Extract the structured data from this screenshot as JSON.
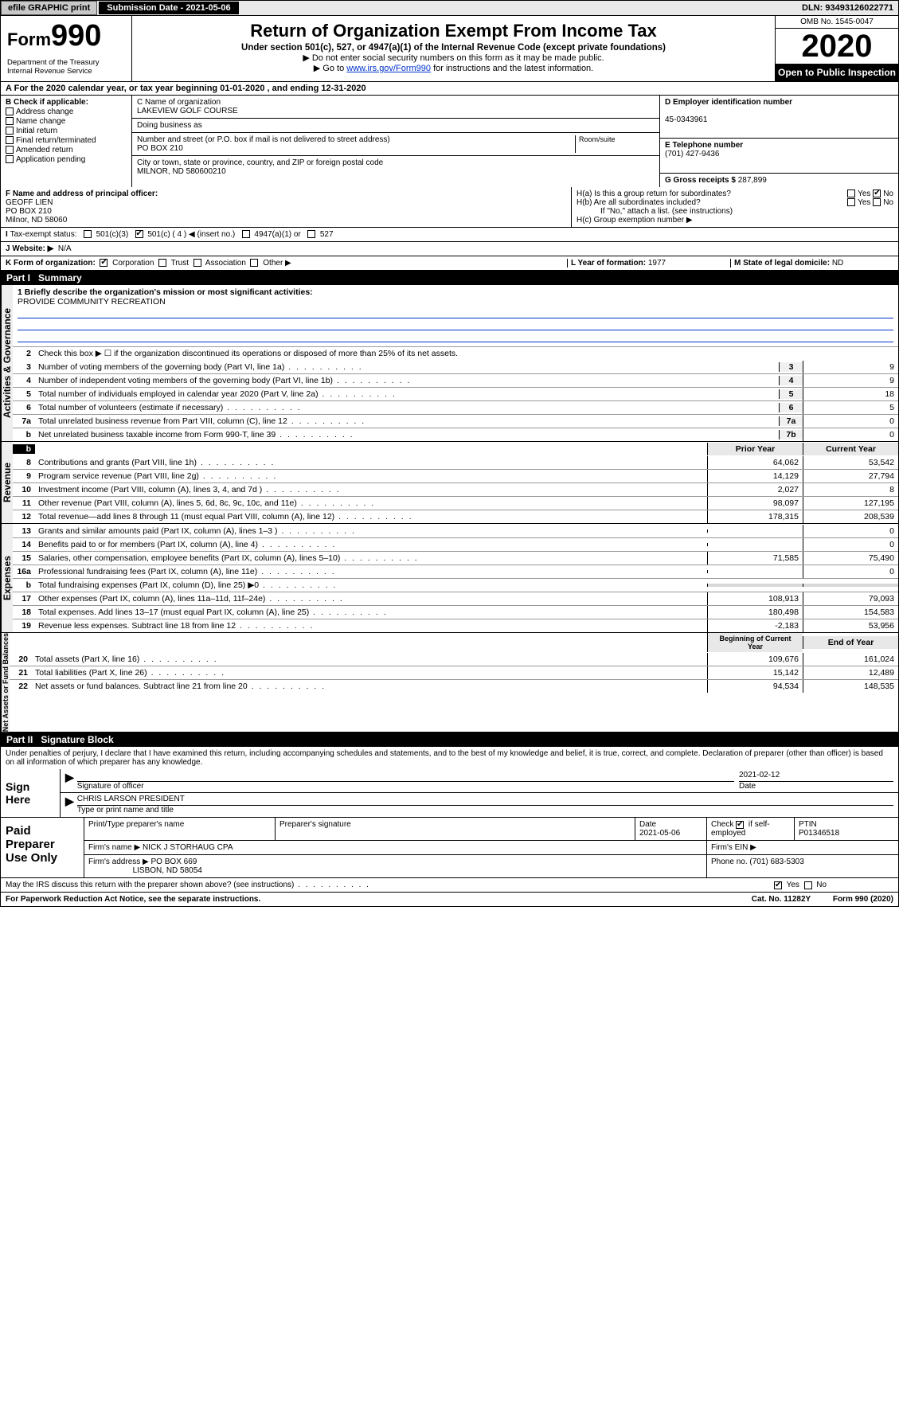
{
  "topbar": {
    "efile": "efile GRAPHIC print",
    "submission": "Submission Date - 2021-05-06",
    "dln": "DLN: 93493126022771"
  },
  "header": {
    "form_label": "Form",
    "form_num": "990",
    "dept": "Department of the Treasury\nInternal Revenue Service",
    "title": "Return of Organization Exempt From Income Tax",
    "sub1": "Under section 501(c), 527, or 4947(a)(1) of the Internal Revenue Code (except private foundations)",
    "sub2": "▶ Do not enter social security numbers on this form as it may be made public.",
    "sub3a": "▶ Go to ",
    "sub3link": "www.irs.gov/Form990",
    "sub3b": " for instructions and the latest information.",
    "omb": "OMB No. 1545-0047",
    "year": "2020",
    "open": "Open to Public Inspection"
  },
  "period": "For the 2020 calendar year, or tax year beginning 01-01-2020     , and ending 12-31-2020",
  "boxB": {
    "label": "B Check if applicable:",
    "items": [
      "Address change",
      "Name change",
      "Initial return",
      "Final return/terminated",
      "Amended return",
      "Application pending"
    ]
  },
  "boxC": {
    "name_lbl": "C Name of organization",
    "name": "LAKEVIEW GOLF COURSE",
    "dba_lbl": "Doing business as",
    "addr_lbl": "Number and street (or P.O. box if mail is not delivered to street address)",
    "room_lbl": "Room/suite",
    "addr": "PO BOX 210",
    "city_lbl": "City or town, state or province, country, and ZIP or foreign postal code",
    "city": "MILNOR, ND  580600210"
  },
  "boxD": {
    "lbl": "D Employer identification number",
    "val": "45-0343961"
  },
  "boxE": {
    "lbl": "E Telephone number",
    "val": "(701) 427-9436"
  },
  "boxG": {
    "lbl": "G Gross receipts $",
    "val": "287,899"
  },
  "boxF": {
    "lbl": "F  Name and address of principal officer:",
    "name": "GEOFF LIEN",
    "addr1": "PO BOX 210",
    "addr2": "Milnor, ND  58060"
  },
  "boxH": {
    "a": "H(a)  Is this a group return for subordinates?",
    "b": "H(b)  Are all subordinates included?",
    "bnote": "If \"No,\" attach a list. (see instructions)",
    "c": "H(c)  Group exemption number ▶",
    "yes": "Yes",
    "no": "No"
  },
  "boxI": {
    "lbl": "Tax-exempt status:",
    "opts": [
      "501(c)(3)",
      "501(c) ( 4 ) ◀ (insert no.)",
      "4947(a)(1) or",
      "527"
    ]
  },
  "boxJ": {
    "lbl": "Website: ▶",
    "val": "N/A"
  },
  "boxK": {
    "lbl": "K Form of organization:",
    "opts": [
      "Corporation",
      "Trust",
      "Association",
      "Other ▶"
    ]
  },
  "boxL": {
    "lbl": "L Year of formation:",
    "val": "1977"
  },
  "boxM": {
    "lbl": "M State of legal domicile:",
    "val": "ND"
  },
  "part1": {
    "title": "Part I",
    "name": "Summary"
  },
  "mission": {
    "q": "1  Briefly describe the organization's mission or most significant activities:",
    "a": "PROVIDE COMMUNITY RECREATION"
  },
  "governance": {
    "vert": "Activities & Governance",
    "l2": "Check this box ▶ ☐  if the organization discontinued its operations or disposed of more than 25% of its net assets.",
    "rows": [
      {
        "n": "3",
        "d": "Number of voting members of the governing body (Part VI, line 1a)",
        "c": "3",
        "v": "9"
      },
      {
        "n": "4",
        "d": "Number of independent voting members of the governing body (Part VI, line 1b)",
        "c": "4",
        "v": "9"
      },
      {
        "n": "5",
        "d": "Total number of individuals employed in calendar year 2020 (Part V, line 2a)",
        "c": "5",
        "v": "18"
      },
      {
        "n": "6",
        "d": "Total number of volunteers (estimate if necessary)",
        "c": "6",
        "v": "5"
      },
      {
        "n": "7a",
        "d": "Total unrelated business revenue from Part VIII, column (C), line 12",
        "c": "7a",
        "v": "0"
      },
      {
        "n": "b",
        "d": "Net unrelated business taxable income from Form 990-T, line 39",
        "c": "7b",
        "v": "0"
      }
    ]
  },
  "revenue": {
    "vert": "Revenue",
    "head": {
      "b": "b",
      "py": "Prior Year",
      "cy": "Current Year"
    },
    "rows": [
      {
        "n": "8",
        "d": "Contributions and grants (Part VIII, line 1h)",
        "py": "64,062",
        "cy": "53,542"
      },
      {
        "n": "9",
        "d": "Program service revenue (Part VIII, line 2g)",
        "py": "14,129",
        "cy": "27,794"
      },
      {
        "n": "10",
        "d": "Investment income (Part VIII, column (A), lines 3, 4, and 7d )",
        "py": "2,027",
        "cy": "8"
      },
      {
        "n": "11",
        "d": "Other revenue (Part VIII, column (A), lines 5, 6d, 8c, 9c, 10c, and 11e)",
        "py": "98,097",
        "cy": "127,195"
      },
      {
        "n": "12",
        "d": "Total revenue—add lines 8 through 11 (must equal Part VIII, column (A), line 12)",
        "py": "178,315",
        "cy": "208,539"
      }
    ]
  },
  "expenses": {
    "vert": "Expenses",
    "rows": [
      {
        "n": "13",
        "d": "Grants and similar amounts paid (Part IX, column (A), lines 1–3 )",
        "py": "",
        "cy": "0"
      },
      {
        "n": "14",
        "d": "Benefits paid to or for members (Part IX, column (A), line 4)",
        "py": "",
        "cy": "0"
      },
      {
        "n": "15",
        "d": "Salaries, other compensation, employee benefits (Part IX, column (A), lines 5–10)",
        "py": "71,585",
        "cy": "75,490"
      },
      {
        "n": "16a",
        "d": "Professional fundraising fees (Part IX, column (A), line 11e)",
        "py": "",
        "cy": "0"
      },
      {
        "n": "b",
        "d": "Total fundraising expenses (Part IX, column (D), line 25) ▶0",
        "py": "—",
        "cy": "—"
      },
      {
        "n": "17",
        "d": "Other expenses (Part IX, column (A), lines 11a–11d, 11f–24e)",
        "py": "108,913",
        "cy": "79,093"
      },
      {
        "n": "18",
        "d": "Total expenses. Add lines 13–17 (must equal Part IX, column (A), line 25)",
        "py": "180,498",
        "cy": "154,583"
      },
      {
        "n": "19",
        "d": "Revenue less expenses. Subtract line 18 from line 12",
        "py": "-2,183",
        "cy": "53,956"
      }
    ]
  },
  "netassets": {
    "vert": "Net Assets or Fund Balances",
    "head": {
      "py": "Beginning of Current Year",
      "cy": "End of Year"
    },
    "rows": [
      {
        "n": "20",
        "d": "Total assets (Part X, line 16)",
        "py": "109,676",
        "cy": "161,024"
      },
      {
        "n": "21",
        "d": "Total liabilities (Part X, line 26)",
        "py": "15,142",
        "cy": "12,489"
      },
      {
        "n": "22",
        "d": "Net assets or fund balances. Subtract line 21 from line 20",
        "py": "94,534",
        "cy": "148,535"
      }
    ]
  },
  "part2": {
    "title": "Part II",
    "name": "Signature Block"
  },
  "decl": "Under penalties of perjury, I declare that I have examined this return, including accompanying schedules and statements, and to the best of my knowledge and belief, it is true, correct, and complete. Declaration of preparer (other than officer) is based on all information of which preparer has any knowledge.",
  "sign": {
    "here": "Sign Here",
    "sig_lbl": "Signature of officer",
    "date": "2021-02-12",
    "date_lbl": "Date",
    "name": "CHRIS LARSON  PRESIDENT",
    "name_lbl": "Type or print name and title"
  },
  "paid": {
    "title": "Paid Preparer Use Only",
    "h1": "Print/Type preparer's name",
    "h2": "Preparer's signature",
    "h3": "Date",
    "h3v": "2021-05-06",
    "h4a": "Check",
    "h4b": "if self-employed",
    "h5": "PTIN",
    "h5v": "P01346518",
    "firm_lbl": "Firm's name    ▶",
    "firm": "NICK J STORHAUG CPA",
    "ein_lbl": "Firm's EIN ▶",
    "addr_lbl": "Firm's address ▶",
    "addr1": "PO BOX 669",
    "addr2": "LISBON, ND  58054",
    "phone_lbl": "Phone no.",
    "phone": "(701) 683-5303"
  },
  "discuss": "May the IRS discuss this return with the preparer shown above? (see instructions)",
  "footer": {
    "left": "For Paperwork Reduction Act Notice, see the separate instructions.",
    "mid": "Cat. No. 11282Y",
    "right": "Form 990 (2020)"
  }
}
